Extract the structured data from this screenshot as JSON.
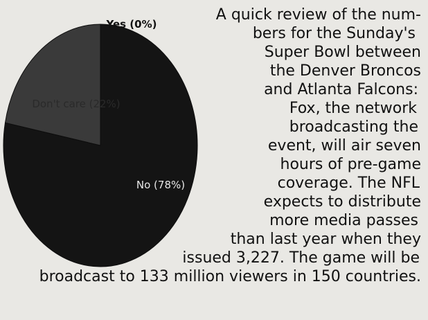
{
  "chart_data": {
    "type": "pie",
    "slices": [
      {
        "label": "Yes (0%)",
        "value": 0,
        "color": "#1a1a1a"
      },
      {
        "label": "No (78%)",
        "value": 78,
        "color": "#141414"
      },
      {
        "label": "Don't care (22%)",
        "value": 22,
        "color": "#3a3a3a"
      }
    ]
  },
  "article": {
    "lines": [
      "A quick review of the num-",
      "bers for the Sunday's",
      "Super Bowl between",
      "the Denver Broncos",
      "and Atlanta Falcons:",
      "Fox, the network",
      "broadcasting the",
      "event, will air seven",
      "hours of pre-game",
      "coverage. The NFL",
      "expects to distribute",
      "more media passes",
      "than last year when they",
      "issued 3,227.  The game will be",
      "broadcast to 133 million viewers in 150 countries."
    ]
  }
}
